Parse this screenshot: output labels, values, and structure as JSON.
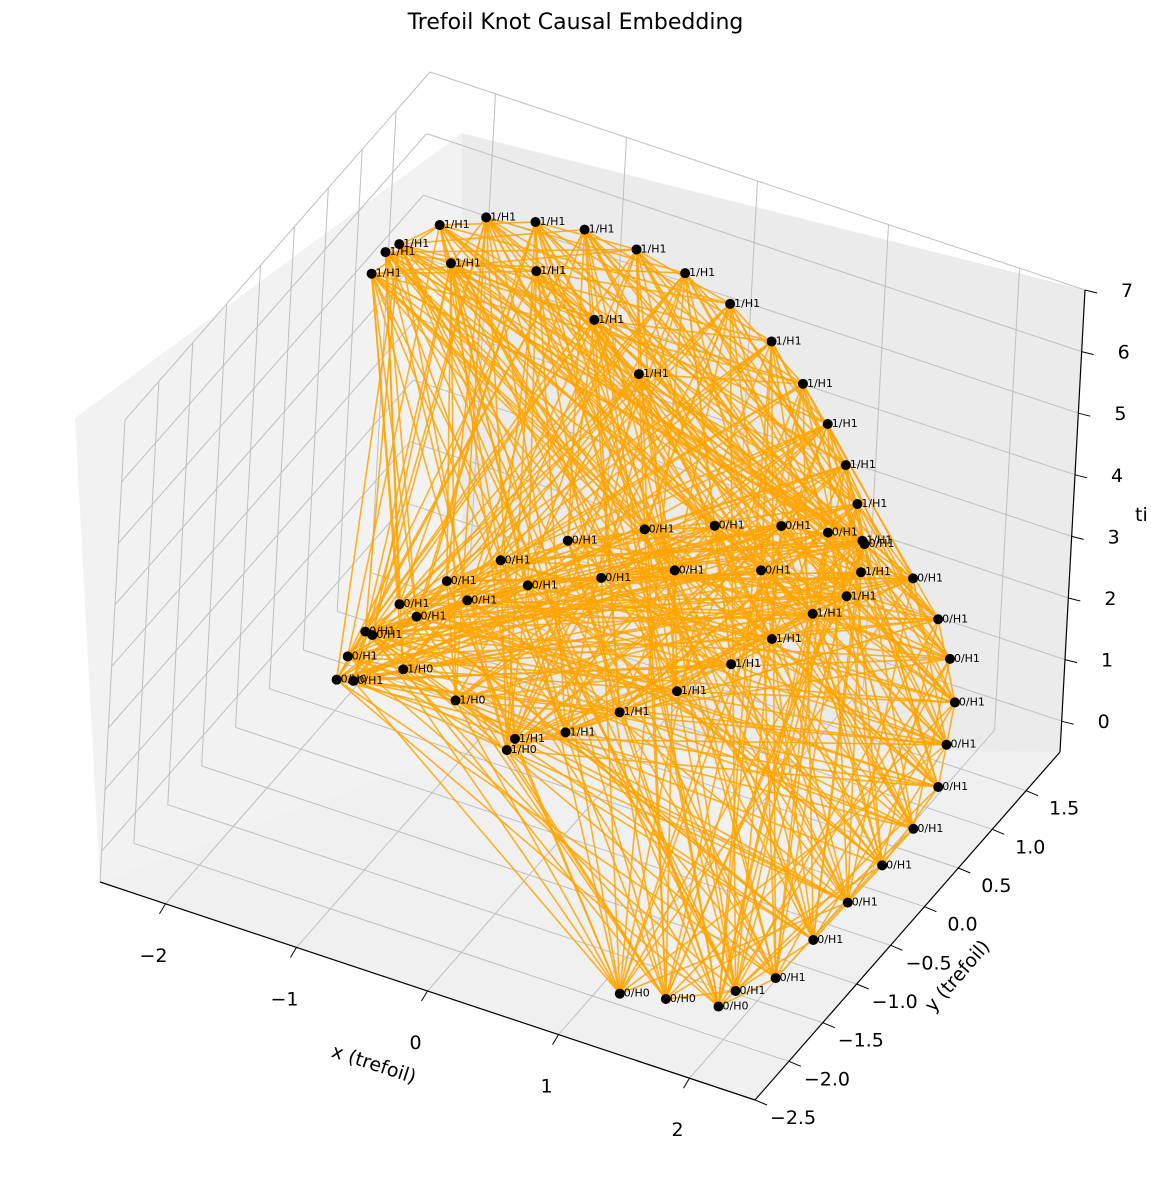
{
  "chart_data": {
    "type": "scatter",
    "title": "Trefoil Knot Causal Embedding",
    "xlabel": "x (trefoil)",
    "ylabel": "y (trefoil)",
    "zlabel": "ti",
    "xlim": [
      -2.5,
      2.5
    ],
    "ylim": [
      -2.5,
      2.0
    ],
    "zlim": [
      -0.5,
      7.0
    ],
    "x_ticks": [
      "−2",
      "−1",
      "0",
      "1",
      "2"
    ],
    "y_ticks": [
      "−2.5",
      "−2.0",
      "−1.5",
      "−1.0",
      "−0.5",
      "0.0",
      "0.5",
      "1.0",
      "1.5"
    ],
    "z_ticks": [
      "0",
      "1",
      "2",
      "3",
      "4",
      "5",
      "6",
      "7"
    ],
    "grid": true,
    "colors": {
      "node": "#000000",
      "edge_orange": "#ffa500",
      "edge_gray": "#808080",
      "pane": "#f2f2f2",
      "grid": "#bfbfbf"
    },
    "series": [
      {
        "points": [
          {
            "x": -2.0,
            "y": 0.0,
            "z": 0.0,
            "label": "0/H0"
          },
          {
            "x": -0.6,
            "y": -0.2,
            "z": 0.1,
            "label": "1/H0"
          },
          {
            "x": 1.3,
            "y": -2.2,
            "z": 0.0,
            "label": "0/H0"
          },
          {
            "x": 1.6,
            "y": -2.1,
            "z": 0.0,
            "label": "0/H0"
          },
          {
            "x": 1.95,
            "y": -2.0,
            "z": 0.0,
            "label": "0/H0"
          },
          {
            "x": -1.6,
            "y": 0.2,
            "z": 0.2,
            "label": "1/H0"
          },
          {
            "x": -1.1,
            "y": 0.0,
            "z": 0.3,
            "label": "1/H0"
          },
          {
            "x": -1.95,
            "y": 0.05,
            "z": 0.35,
            "label": "0/H1"
          },
          {
            "x": -1.9,
            "y": 0.2,
            "z": 0.6,
            "label": "0/H1"
          },
          {
            "x": -1.75,
            "y": 0.4,
            "z": 0.9,
            "label": "0/H1"
          },
          {
            "x": -1.5,
            "y": 0.6,
            "z": 1.2,
            "label": "0/H1"
          },
          {
            "x": -1.2,
            "y": 0.8,
            "z": 1.5,
            "label": "0/H1"
          },
          {
            "x": -0.8,
            "y": 1.0,
            "z": 1.85,
            "label": "0/H1"
          },
          {
            "x": -0.3,
            "y": 1.15,
            "z": 2.2,
            "label": "0/H1"
          },
          {
            "x": 0.2,
            "y": 1.2,
            "z": 2.55,
            "label": "0/H1"
          },
          {
            "x": 0.7,
            "y": 1.2,
            "z": 2.9,
            "label": "0/H1"
          },
          {
            "x": 1.1,
            "y": 1.1,
            "z": 3.2,
            "label": "0/H1"
          },
          {
            "x": 1.45,
            "y": 0.95,
            "z": 3.45,
            "label": "0/H1"
          },
          {
            "x": 1.9,
            "y": 0.8,
            "z": 3.4,
            "label": "0/H1"
          },
          {
            "x": 2.2,
            "y": 0.6,
            "z": 3.2,
            "label": "0/H1"
          },
          {
            "x": 2.4,
            "y": 0.4,
            "z": 2.95,
            "label": "0/H1"
          },
          {
            "x": 2.55,
            "y": 0.2,
            "z": 2.6,
            "label": "0/H1"
          },
          {
            "x": 2.6,
            "y": 0.0,
            "z": 2.2,
            "label": "0/H1"
          },
          {
            "x": 2.65,
            "y": -0.2,
            "z": 1.8,
            "label": "0/H1"
          },
          {
            "x": 2.6,
            "y": -0.45,
            "z": 1.4,
            "label": "0/H1"
          },
          {
            "x": 2.5,
            "y": -0.7,
            "z": 1.05,
            "label": "0/H1"
          },
          {
            "x": 2.4,
            "y": -1.0,
            "z": 0.75,
            "label": "0/H1"
          },
          {
            "x": 2.3,
            "y": -1.3,
            "z": 0.45,
            "label": "0/H1"
          },
          {
            "x": 2.2,
            "y": -1.65,
            "z": 0.2,
            "label": "0/H1"
          },
          {
            "x": 2.0,
            "y": -1.85,
            "z": 0.1,
            "label": "0/H1"
          },
          {
            "x": -1.85,
            "y": -0.05,
            "z": 0.15,
            "label": "0/H1"
          },
          {
            "x": -1.95,
            "y": 0.1,
            "z": 6.5,
            "label": "1/H1"
          },
          {
            "x": -1.85,
            "y": 0.3,
            "z": 6.8,
            "label": "1/H1"
          },
          {
            "x": -1.65,
            "y": 0.5,
            "z": 7.0,
            "label": "1/H1"
          },
          {
            "x": -1.4,
            "y": 0.7,
            "z": 7.05,
            "label": "1/H1"
          },
          {
            "x": -1.1,
            "y": 0.85,
            "z": 7.0,
            "label": "1/H1"
          },
          {
            "x": -0.8,
            "y": 1.0,
            "z": 6.9,
            "label": "1/H1"
          },
          {
            "x": -0.45,
            "y": 1.1,
            "z": 6.7,
            "label": "1/H1"
          },
          {
            "x": -0.1,
            "y": 1.15,
            "z": 6.5,
            "label": "1/H1"
          },
          {
            "x": 0.25,
            "y": 1.15,
            "z": 6.25,
            "label": "1/H1"
          },
          {
            "x": 0.6,
            "y": 1.1,
            "z": 5.95,
            "label": "1/H1"
          },
          {
            "x": 0.9,
            "y": 1.0,
            "z": 5.6,
            "label": "1/H1"
          },
          {
            "x": 1.15,
            "y": 0.9,
            "z": 5.25,
            "label": "1/H1"
          },
          {
            "x": 1.35,
            "y": 0.8,
            "z": 4.85,
            "label": "1/H1"
          },
          {
            "x": 1.5,
            "y": 0.7,
            "z": 4.45,
            "label": "1/H1"
          },
          {
            "x": 1.6,
            "y": 0.6,
            "z": 4.05,
            "label": "1/H1"
          },
          {
            "x": 1.65,
            "y": 0.5,
            "z": 3.7,
            "label": "1/H1"
          },
          {
            "x": 1.6,
            "y": 0.4,
            "z": 3.4,
            "label": "1/H1"
          },
          {
            "x": 1.4,
            "y": 0.3,
            "z": 3.1,
            "label": "1/H1"
          },
          {
            "x": 1.2,
            "y": 0.1,
            "z": 2.8,
            "label": "1/H1"
          },
          {
            "x": 1.0,
            "y": -0.1,
            "z": 2.5,
            "label": "1/H1"
          },
          {
            "x": 0.7,
            "y": -0.3,
            "z": 2.1,
            "label": "1/H1"
          },
          {
            "x": 0.35,
            "y": -0.45,
            "z": 1.7,
            "label": "1/H1"
          },
          {
            "x": 0.0,
            "y": -0.55,
            "z": 1.25,
            "label": "1/H1"
          },
          {
            "x": -0.4,
            "y": -0.5,
            "z": 0.8,
            "label": "1/H1"
          },
          {
            "x": 0.0,
            "y": 0.3,
            "z": 6.0,
            "label": "1/H1"
          },
          {
            "x": -0.5,
            "y": 0.6,
            "z": 6.15,
            "label": "1/H1"
          },
          {
            "x": -1.05,
            "y": 0.8,
            "z": 6.3,
            "label": "1/H1"
          },
          {
            "x": -1.55,
            "y": 0.5,
            "z": 6.45,
            "label": "1/H1"
          },
          {
            "x": -1.95,
            "y": 0.3,
            "z": 6.6,
            "label": "1/H1"
          },
          {
            "x": 0.9,
            "y": 0.5,
            "z": 3.2,
            "label": "0/H1"
          },
          {
            "x": 0.3,
            "y": 0.4,
            "z": 2.9,
            "label": "0/H1"
          },
          {
            "x": -0.2,
            "y": 0.3,
            "z": 2.55,
            "label": "0/H1"
          },
          {
            "x": -0.7,
            "y": 0.2,
            "z": 2.2,
            "label": "0/H1"
          },
          {
            "x": -1.1,
            "y": 0.1,
            "z": 1.8,
            "label": "0/H1"
          },
          {
            "x": -1.45,
            "y": 0.05,
            "z": 1.35,
            "label": "0/H1"
          },
          {
            "x": -1.75,
            "y": 0.0,
            "z": 0.9,
            "label": "0/H1"
          }
        ]
      }
    ]
  }
}
